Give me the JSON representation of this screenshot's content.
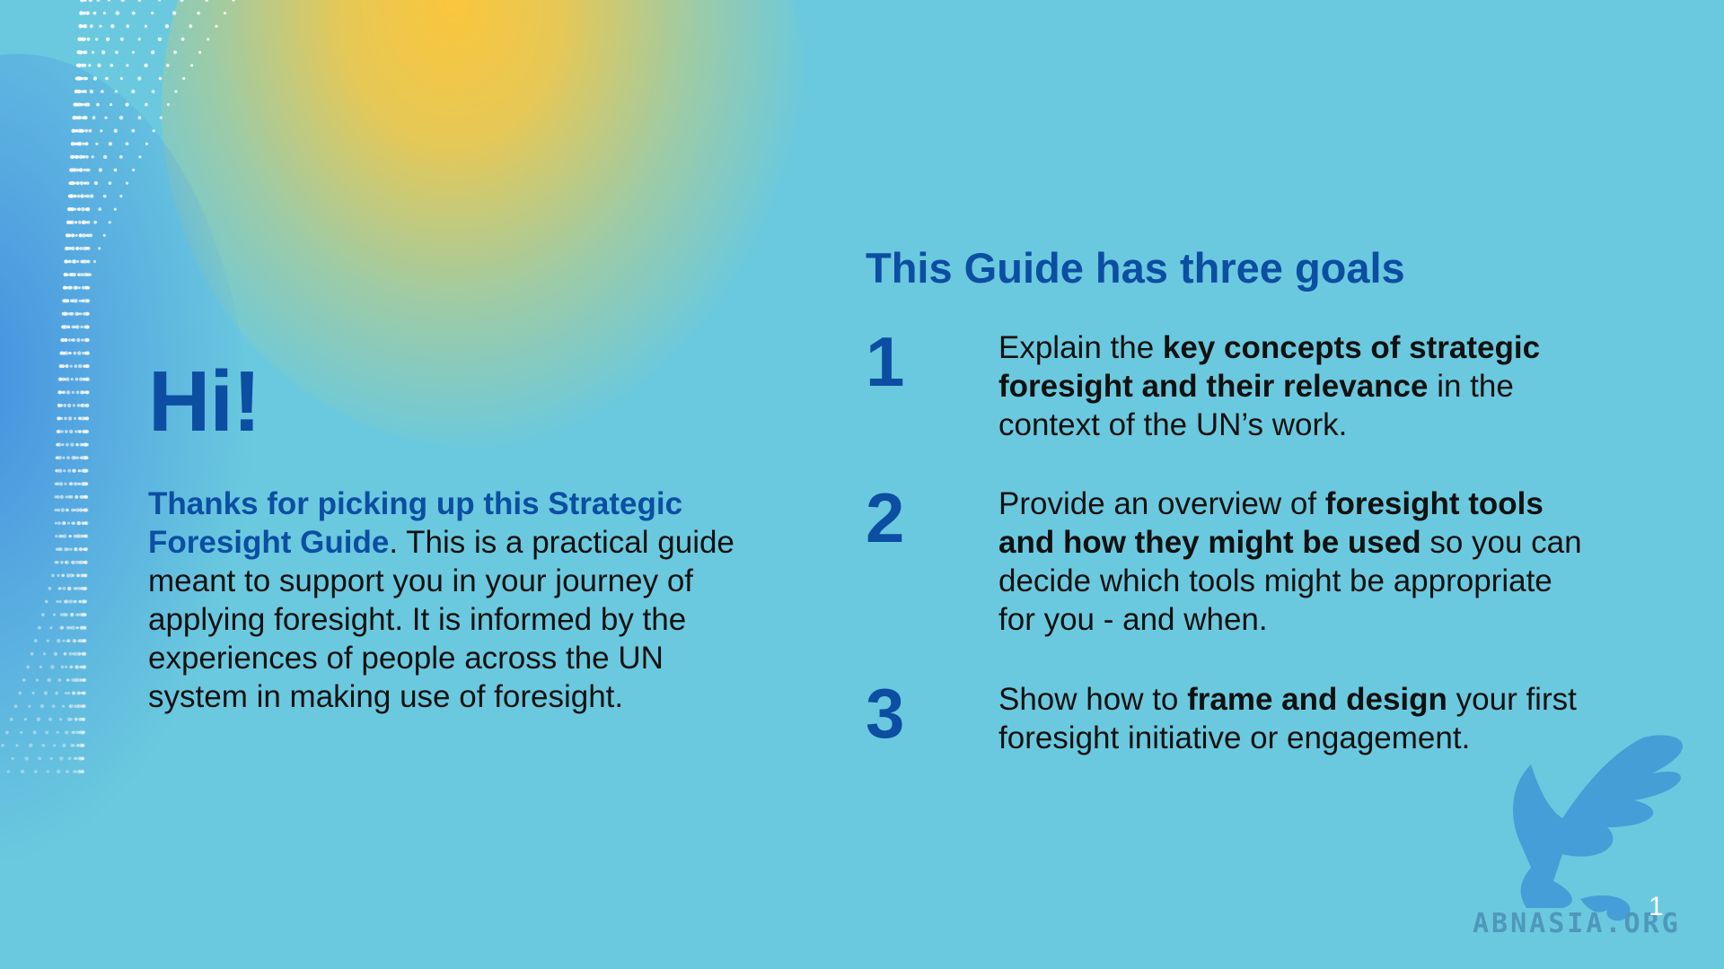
{
  "slide": {
    "greeting": "Hi!",
    "intro": {
      "lead": "Thanks for picking up this Strategic Foresight Guide",
      "body": ". This is a practical guide meant to support you in your journey of applying foresight. It is informed by the experiences of people across the UN system in making use of foresight."
    },
    "goals_title": "This Guide has three goals",
    "goals": [
      {
        "number": "1",
        "pre": "Explain the ",
        "bold": "key concepts of strategic foresight and their relevance",
        "post": " in the context of the UN’s work."
      },
      {
        "number": "2",
        "pre": "Provide an overview of ",
        "bold": "foresight tools and how they might be used",
        "post": " so you can decide which tools might be appropriate for you - and when."
      },
      {
        "number": "3",
        "pre": "Show how to ",
        "bold": "frame and design",
        "post": " your first foresight initiative or engagement."
      }
    ],
    "page_number": "1"
  },
  "watermark": {
    "text": "ABNASIA.ORG",
    "icon": "griffin-logo-icon"
  },
  "colors": {
    "background": "#6ac9de",
    "accent_blue": "#0b4ea2",
    "glow_yellow": "#f4c441",
    "text": "#111111"
  }
}
